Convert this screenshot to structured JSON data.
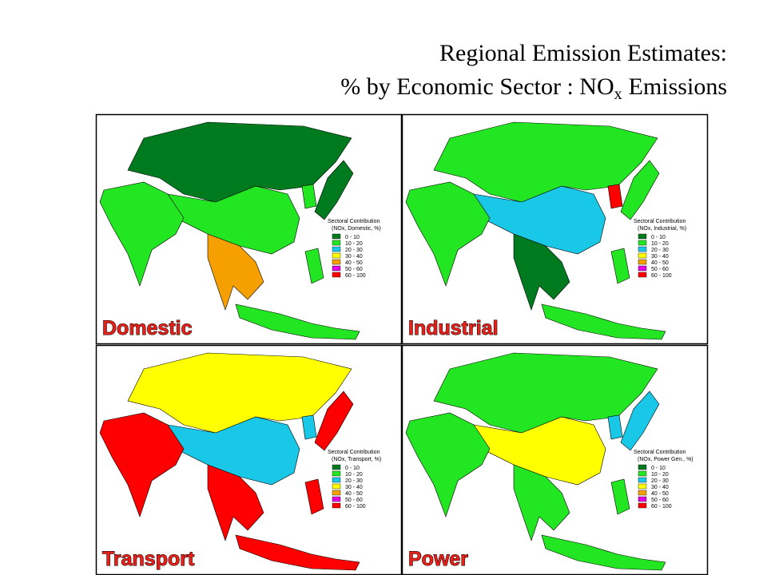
{
  "header": {
    "title_line1": "Regional Emission Estimates:",
    "title_line2": "% by Economic Sector : NO",
    "title_subscript": "x",
    "title_suffix": "Emissions"
  },
  "legend_classes": [
    {
      "label": "0 - 10",
      "color": "#007a1e"
    },
    {
      "label": "10 - 20",
      "color": "#22e622"
    },
    {
      "label": "20 - 30",
      "color": "#19c8e6"
    },
    {
      "label": "30 - 40",
      "color": "#ffff00"
    },
    {
      "label": "40 - 50",
      "color": "#f5a000"
    },
    {
      "label": "50 - 60",
      "color": "#e600e6"
    },
    {
      "label": "60 - 100",
      "color": "#ff0000"
    }
  ],
  "panels": [
    {
      "label": "Domestic",
      "legend_title": "Sectoral Contribution",
      "legend_subtitle": "(NOx, Domestic, %)"
    },
    {
      "label": "Industrial",
      "legend_title": "Sectoral Contribution",
      "legend_subtitle": "(NOx, Industrial, %)"
    },
    {
      "label": "Transport",
      "legend_title": "Sectoral Contribution",
      "legend_subtitle": "(NOx, Transport, %)"
    },
    {
      "label": "Power",
      "legend_title": "Sectoral Contribution",
      "legend_subtitle": "(NOx, Power Gen., %)"
    }
  ]
}
